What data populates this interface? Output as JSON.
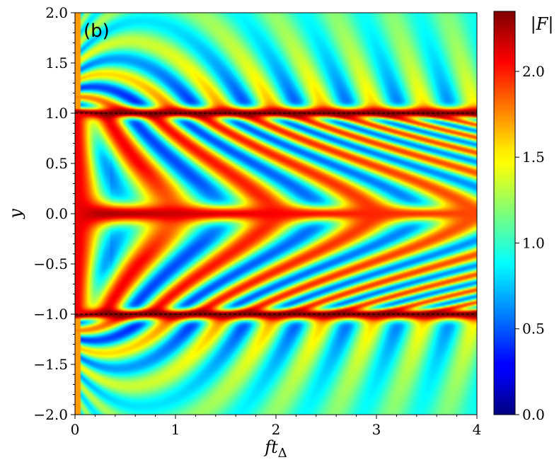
{
  "chart_data": {
    "type": "heatmap",
    "panel_label": "(b)",
    "xlabel": "ft",
    "xlabel_sub": "Δ",
    "ylabel": "y",
    "xlim": [
      0,
      4
    ],
    "ylim": [
      -2,
      2
    ],
    "x_ticks": [
      "0",
      "1",
      "2",
      "3",
      "4"
    ],
    "y_ticks": [
      "−2.0",
      "−1.5",
      "−1.0",
      "−0.5",
      "0.0",
      "0.5",
      "1.0",
      "1.5",
      "2.0"
    ],
    "reference_lines_y": [
      1.0,
      -1.0
    ],
    "colorbar": {
      "label": "|F|",
      "range": [
        0,
        2.35
      ],
      "ticks": [
        "0.0",
        "0.5",
        "1.0",
        "1.5",
        "2.0"
      ],
      "colormap": "jet"
    },
    "grid": false
  }
}
